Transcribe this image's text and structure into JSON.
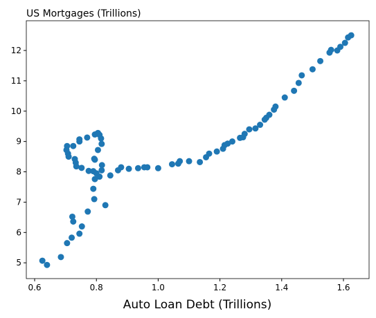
{
  "chart_data": {
    "type": "scatter",
    "title": "US Mortgages (Trillions)",
    "xlabel": "Auto Loan Debt (Trillions)",
    "color": "#1f77b4",
    "xlim": [
      0.573,
      1.683
    ],
    "ylim": [
      4.48,
      12.98
    ],
    "xticks": [
      0.6,
      0.8,
      {
        "value": 1,
        "label": "1.0"
      },
      1.2,
      1.4,
      1.6
    ],
    "yticks": [
      5,
      6,
      7,
      8,
      9,
      10,
      11,
      12
    ],
    "x": [
      0.625,
      0.64,
      0.685,
      0.705,
      0.72,
      0.745,
      0.753,
      0.725,
      0.722,
      0.772,
      0.793,
      0.829,
      0.79,
      0.795,
      0.81,
      0.775,
      0.79,
      0.8,
      0.817,
      0.818,
      0.795,
      0.845,
      0.87,
      0.88,
      0.905,
      0.935,
      0.955,
      0.965,
      1.0,
      1.045,
      1.065,
      1.07,
      1.1,
      1.135,
      1.155,
      1.165,
      1.19,
      1.21,
      1.215,
      1.225,
      1.24,
      1.265,
      1.275,
      1.28,
      1.295,
      1.315,
      1.33,
      1.345,
      1.35,
      1.36,
      1.375,
      1.38,
      1.41,
      1.44,
      1.455,
      1.465,
      1.5,
      1.525,
      1.555,
      1.56,
      1.58,
      1.59,
      1.605,
      1.615,
      1.625,
      0.705,
      0.725,
      0.745,
      0.745,
      0.77,
      0.795,
      0.805,
      0.81,
      0.815,
      0.817,
      0.805,
      0.793,
      0.703,
      0.708,
      0.71,
      0.73,
      0.733,
      0.735,
      0.752
    ],
    "values": [
      5.07,
      4.93,
      5.19,
      5.65,
      5.83,
      5.96,
      6.2,
      6.36,
      6.52,
      6.69,
      7.1,
      6.9,
      7.44,
      7.76,
      7.84,
      8.03,
      8.02,
      7.95,
      8.05,
      8.22,
      8.4,
      7.88,
      8.05,
      8.15,
      8.1,
      8.12,
      8.15,
      8.15,
      8.12,
      8.25,
      8.27,
      8.35,
      8.35,
      8.32,
      8.48,
      8.6,
      8.67,
      8.76,
      8.88,
      8.93,
      9.0,
      9.12,
      9.14,
      9.25,
      9.4,
      9.43,
      9.55,
      9.72,
      9.78,
      9.88,
      10.05,
      10.15,
      10.45,
      10.67,
      10.93,
      11.18,
      11.38,
      11.65,
      11.93,
      12.02,
      12.0,
      12.12,
      12.25,
      12.43,
      12.5,
      8.85,
      8.85,
      9.0,
      9.07,
      9.13,
      9.23,
      9.28,
      9.22,
      9.1,
      8.92,
      8.72,
      8.43,
      8.72,
      8.6,
      8.5,
      8.42,
      8.3,
      8.18,
      8.13
    ]
  }
}
